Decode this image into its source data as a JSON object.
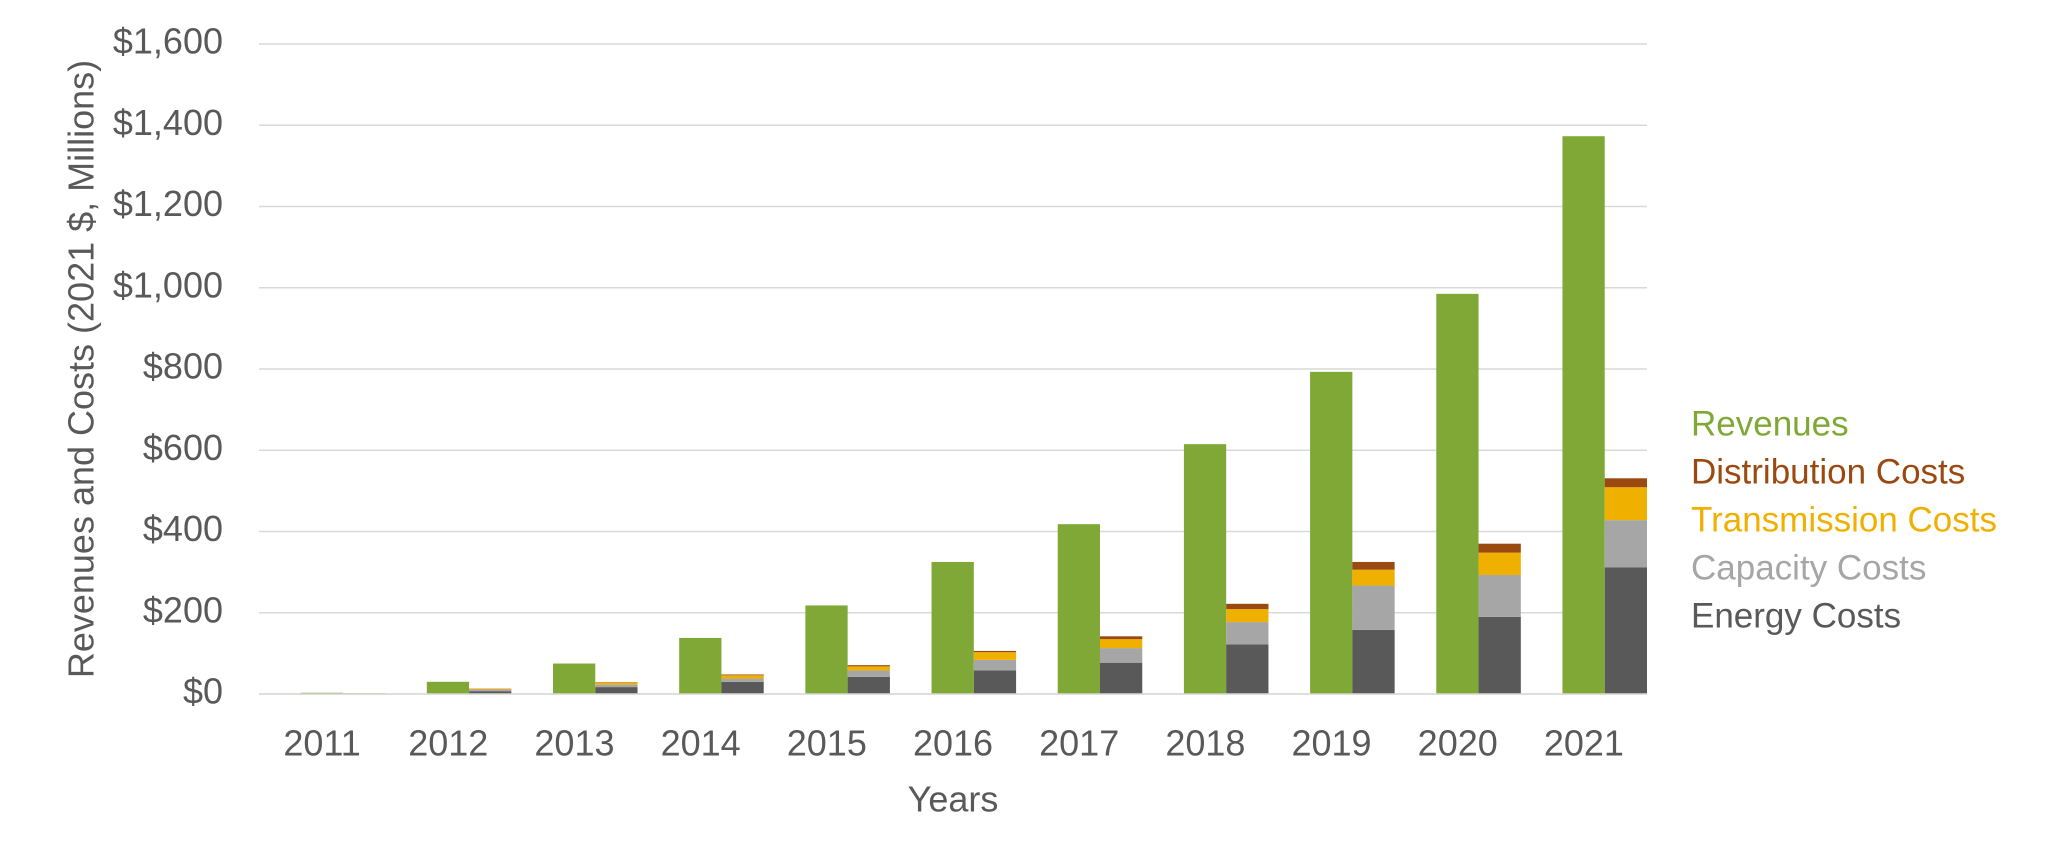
{
  "chart_data": {
    "type": "bar",
    "y_label": "Revenues and Costs (2021 $, Millions)",
    "x_label": "Years",
    "categories": [
      "2011",
      "2012",
      "2013",
      "2014",
      "2015",
      "2016",
      "2017",
      "2018",
      "2019",
      "2020",
      "2021"
    ],
    "series": [
      {
        "name": "Revenues",
        "color": "#7fa836",
        "values": [
          3,
          30,
          75,
          138,
          218,
          325,
          418,
          615,
          793,
          985,
          1373
        ]
      },
      {
        "name": "Distribution Costs",
        "color": "#9a4a10",
        "values": [
          0.2,
          1,
          1,
          2,
          3,
          3,
          7,
          13,
          19,
          22,
          22
        ]
      },
      {
        "name": "Transmission Costs",
        "color": "#f0b000",
        "values": [
          0.5,
          2,
          5,
          8,
          10,
          19,
          22,
          32,
          39,
          55,
          81
        ]
      },
      {
        "name": "Capacity Costs",
        "color": "#a6a6a6",
        "values": [
          0.5,
          3,
          6,
          8,
          16,
          26,
          36,
          55,
          109,
          103,
          116
        ]
      },
      {
        "name": "Energy Costs",
        "color": "#595959",
        "values": [
          1,
          7,
          17,
          30,
          42,
          58,
          77,
          122,
          158,
          190,
          312
        ]
      }
    ],
    "ylim": [
      0,
      1600
    ],
    "yticks": [
      {
        "value": 0,
        "label": "$0"
      },
      {
        "value": 200,
        "label": "$200"
      },
      {
        "value": 400,
        "label": "$400"
      },
      {
        "value": 600,
        "label": "$600"
      },
      {
        "value": 800,
        "label": "$800"
      },
      {
        "value": 1000,
        "label": "$1,000"
      },
      {
        "value": 1200,
        "label": "$1,200"
      },
      {
        "value": 1400,
        "label": "$1,400"
      },
      {
        "value": 1600,
        "label": "$1,600"
      }
    ],
    "grid": true
  }
}
